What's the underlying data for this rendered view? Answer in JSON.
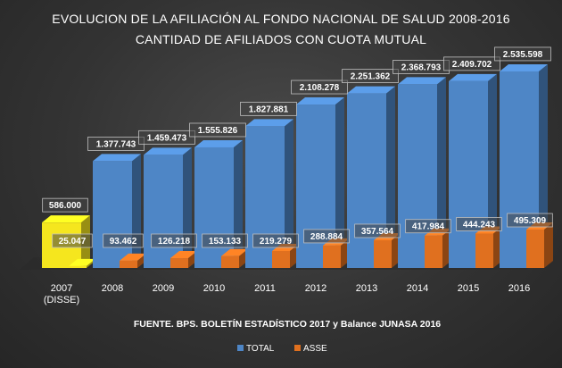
{
  "chart_data": {
    "type": "bar",
    "title": "EVOLUCION DE LA AFILIACIÓN AL FONDO NACIONAL DE SALUD 2008-2016",
    "subtitle": "CANTIDAD DE AFILIADOS CON CUOTA MUTUAL",
    "categories": [
      "2007 (DISSE)",
      "2008",
      "2009",
      "2010",
      "2011",
      "2012",
      "2013",
      "2014",
      "2015",
      "2016"
    ],
    "category_lines": [
      [
        "2007",
        "(DISSE)"
      ],
      [
        "2008"
      ],
      [
        "2009"
      ],
      [
        "2010"
      ],
      [
        "2011"
      ],
      [
        "2012"
      ],
      [
        "2013"
      ],
      [
        "2014"
      ],
      [
        "2015"
      ],
      [
        "2016"
      ]
    ],
    "series": [
      {
        "name": "TOTAL",
        "color": "#4e86c6",
        "values": [
          586000,
          1377743,
          1459473,
          1555826,
          1827881,
          2108278,
          2251362,
          2368793,
          2409702,
          2535598
        ],
        "labels": [
          "586.000",
          "1.377.743",
          "1.459.473",
          "1.555.826",
          "1.827.881",
          "2.108.278",
          "2.251.362",
          "2.368.793",
          "2.409.702",
          "2.535.598"
        ]
      },
      {
        "name": "ASSE",
        "color": "#e0701f",
        "values": [
          25047,
          93462,
          126218,
          153133,
          219279,
          288884,
          357564,
          417984,
          444243,
          495309
        ],
        "labels": [
          "25.047",
          "93.462",
          "126.218",
          "153.133",
          "219.279",
          "288.884",
          "357.564",
          "417.984",
          "444.243",
          "495.309"
        ]
      }
    ],
    "highlight": {
      "category_index": 0,
      "color": "#f5e61e"
    },
    "ylim": [
      0,
      2800000
    ],
    "grid": false,
    "legend_position": "bottom",
    "source_note": "FUENTE. BPS. BOLETÍN ESTADÍSTICO 2017 y Balance JUNASA 2016"
  }
}
